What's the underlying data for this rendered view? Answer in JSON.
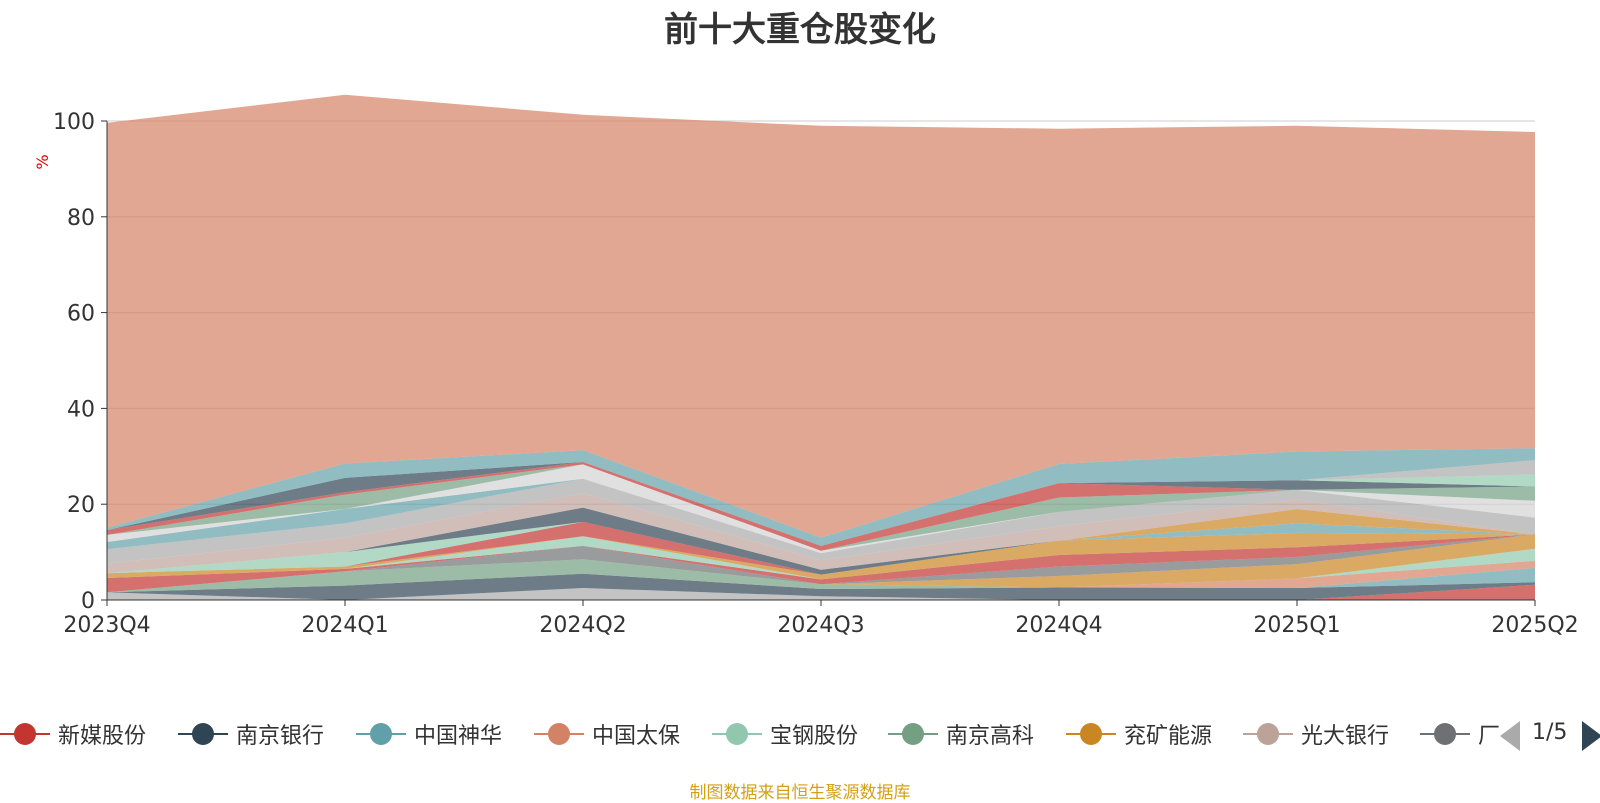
{
  "chart_data": {
    "type": "area",
    "title": "前十大重仓股变化",
    "ylabel": "%",
    "xlabel": "",
    "ylim": [
      0,
      100
    ],
    "yticks": [
      0,
      20,
      40,
      60,
      80,
      100
    ],
    "grid": true,
    "stacked": true,
    "categories": [
      "2023Q4",
      "2024Q1",
      "2024Q2",
      "2024Q3",
      "2024Q4",
      "2025Q1",
      "2025Q2"
    ],
    "legend_position": "bottom",
    "series": [
      {
        "color": "#aaaaaa",
        "values": [
          1.6,
          0.0,
          2.5,
          0.8,
          0.0,
          0.0,
          0.0
        ]
      },
      {
        "color": "#c23531",
        "values": [
          0.0,
          0.0,
          0.0,
          0.0,
          0.0,
          0.0,
          3.2
        ]
      },
      {
        "color": "#2f4554",
        "values": [
          0.0,
          3.0,
          3.0,
          1.5,
          2.6,
          2.5,
          0.5
        ]
      },
      {
        "color": "#61a0a8",
        "values": [
          0.0,
          0.0,
          0.0,
          0.0,
          0.0,
          0.0,
          3.0
        ]
      },
      {
        "color": "#d48265",
        "values": [
          0.0,
          0.0,
          0.0,
          0.0,
          0.0,
          2.0,
          1.5
        ]
      },
      {
        "color": "#91c7ae",
        "values": [
          0.0,
          0.0,
          0.0,
          0.0,
          0.0,
          0.0,
          2.5
        ]
      },
      {
        "color": "#749f83",
        "values": [
          0.0,
          3.0,
          3.0,
          1.0,
          0.0,
          0.0,
          0.0
        ]
      },
      {
        "color": "#ca8622",
        "values": [
          0.0,
          0.0,
          0.0,
          0.0,
          2.4,
          3.0,
          3.0
        ]
      },
      {
        "color": "#bda29a",
        "values": [
          0.0,
          0.0,
          0.0,
          0.0,
          0.0,
          0.0,
          0.0
        ]
      },
      {
        "color": "#6e7074",
        "values": [
          0.0,
          0.0,
          2.8,
          0.0,
          2.0,
          1.5,
          0.0
        ]
      },
      {
        "color": "#c23531",
        "values": [
          3.0,
          0.5,
          0.0,
          0.0,
          0.0,
          0.0,
          0.0
        ]
      },
      {
        "color": "#c23531",
        "values": [
          0.0,
          0.0,
          0.0,
          1.0,
          2.4,
          2.0,
          0.0
        ]
      },
      {
        "color": "#91c7ae",
        "values": [
          0.0,
          0.0,
          2.0,
          0.0,
          0.0,
          0.0,
          0.0
        ]
      },
      {
        "color": "#ca8622",
        "values": [
          1.0,
          0.5,
          0.0,
          1.0,
          3.0,
          3.0,
          0.0
        ]
      },
      {
        "color": "#61a0a8",
        "values": [
          0.0,
          0.0,
          0.0,
          0.0,
          0.0,
          2.0,
          0.0
        ]
      },
      {
        "color": "#c23531",
        "values": [
          0.0,
          0.0,
          3.0,
          0.0,
          0.0,
          0.0,
          0.0
        ]
      },
      {
        "color": "#91c7ae",
        "values": [
          0.0,
          3.0,
          0.0,
          0.0,
          0.0,
          0.0,
          0.0
        ]
      },
      {
        "color": "#ca8622",
        "values": [
          0.0,
          0.0,
          0.0,
          0.0,
          0.0,
          3.0,
          0.0
        ]
      },
      {
        "color": "#2f4554",
        "values": [
          0.0,
          0.0,
          3.0,
          1.0,
          0.0,
          0.0,
          0.0
        ]
      },
      {
        "color": "#bda29a",
        "values": [
          2.0,
          3.0,
          3.0,
          2.0,
          3.0,
          2.0,
          0.0
        ]
      },
      {
        "color": "#aaaaaa",
        "values": [
          3.0,
          3.0,
          3.0,
          1.5,
          3.0,
          2.0,
          3.5
        ]
      },
      {
        "color": "#61a0a8",
        "values": [
          1.5,
          3.0,
          0.0,
          0.0,
          0.0,
          0.0,
          0.0
        ]
      },
      {
        "color": "#d3d3d3",
        "values": [
          1.5,
          0.0,
          3.0,
          0.5,
          0.0,
          0.0,
          3.5
        ]
      },
      {
        "color": "#749f83",
        "values": [
          0.0,
          3.0,
          0.0,
          0.0,
          3.0,
          0.0,
          3.0
        ]
      },
      {
        "color": "#c23531",
        "values": [
          1.0,
          0.5,
          0.5,
          1.0,
          3.0,
          0.0,
          0.0
        ]
      },
      {
        "color": "#2f4554",
        "values": [
          0.0,
          3.0,
          0.0,
          0.0,
          0.0,
          2.0,
          0.0
        ]
      },
      {
        "color": "#91c7ae",
        "values": [
          0.0,
          0.0,
          0.0,
          0.0,
          0.0,
          0.0,
          2.5
        ]
      },
      {
        "color": "#aaaaaa",
        "values": [
          0.0,
          0.0,
          0.0,
          0.0,
          0.0,
          0.0,
          3.0
        ]
      },
      {
        "color": "#61a0a8",
        "values": [
          0.5,
          3.0,
          2.5,
          1.7,
          4.0,
          6.0,
          2.5
        ]
      },
      {
        "color": "#d48265",
        "values": [
          84.5,
          77.0,
          70.0,
          86.0,
          70.0,
          68.0,
          66.0
        ]
      }
    ]
  },
  "legend": {
    "items": [
      {
        "label": "新媒股份",
        "color": "#c23531"
      },
      {
        "label": "南京银行",
        "color": "#2f4554"
      },
      {
        "label": "中国神华",
        "color": "#61a0a8"
      },
      {
        "label": "中国太保",
        "color": "#d48265"
      },
      {
        "label": "宝钢股份",
        "color": "#91c7ae"
      },
      {
        "label": "南京高科",
        "color": "#749f83"
      },
      {
        "label": "兖矿能源",
        "color": "#ca8622"
      },
      {
        "label": "光大银行",
        "color": "#bda29a"
      },
      {
        "label": "厂",
        "color": "#6e7074"
      }
    ],
    "page": "1/5"
  },
  "source_note": "制图数据来自恒生聚源数据库"
}
